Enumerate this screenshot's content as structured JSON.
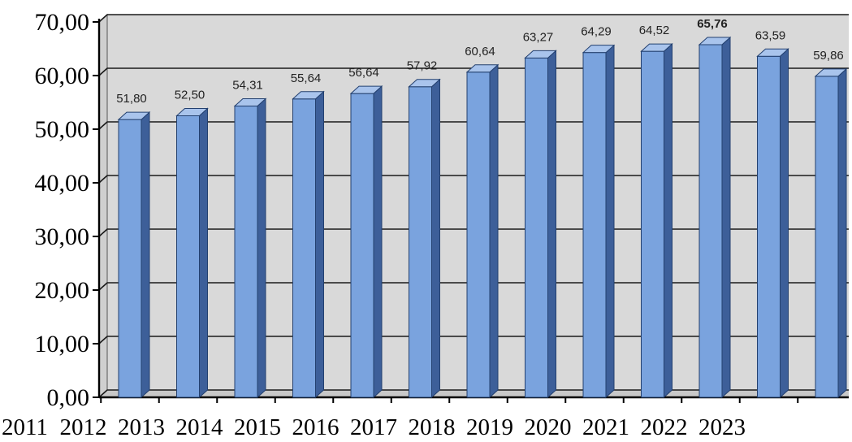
{
  "chart_data": {
    "type": "bar",
    "title": "",
    "xlabel": "",
    "ylabel": "",
    "categories": [
      "2011",
      "2012",
      "2013",
      "2014",
      "2015",
      "2016",
      "2017",
      "2018",
      "2019",
      "2020",
      "2021",
      "2022",
      "2023"
    ],
    "values": [
      51.8,
      52.5,
      54.31,
      55.64,
      56.64,
      57.92,
      60.64,
      63.27,
      64.29,
      64.52,
      65.76,
      63.59,
      59.86
    ],
    "value_labels": [
      "51,80",
      "52,50",
      "54,31",
      "55,64",
      "56,64",
      "57,92",
      "60,64",
      "63,27",
      "64,29",
      "64,52",
      "65,76",
      "63,59",
      "59,86"
    ],
    "highlighted_label_index": 10,
    "ylim": [
      0,
      70
    ],
    "yticks": [
      0,
      10,
      20,
      30,
      40,
      50,
      60,
      70
    ],
    "ytick_labels": [
      "0,00",
      "10,00",
      "20,00",
      "30,00",
      "40,00",
      "50,00",
      "60,00",
      "70,00"
    ],
    "xtick_labels": [
      "2011",
      "2012",
      "2013",
      "2014",
      "2015",
      "2016",
      "2017",
      "2018",
      "2019",
      "2020",
      "2021",
      "2022",
      "2023"
    ],
    "grid": true,
    "style": "3d-column",
    "colors": {
      "bar_front": "#7aa3de",
      "bar_side": "#3d5f99",
      "bar_top": "#a9c4ec",
      "plot_back": "#d9d9d9",
      "plot_floor": "#c8c8c8",
      "gridline": "#1a1a1a"
    }
  }
}
